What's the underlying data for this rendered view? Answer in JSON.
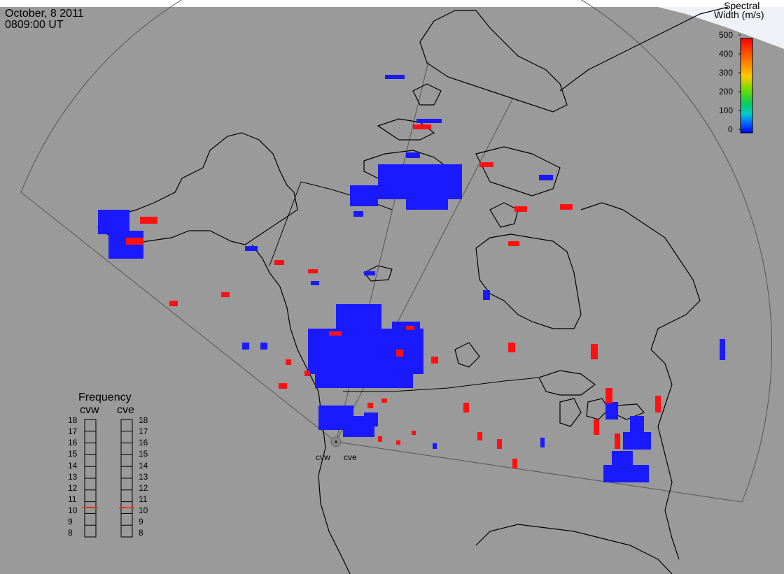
{
  "header": {
    "date": "October, 8 2011",
    "time": "0809:00 UT"
  },
  "colorbar": {
    "title_line1": "Spectral",
    "title_line2": "Width (m/s)",
    "ticks": [
      "500",
      "400",
      "300",
      "200",
      "100",
      "0"
    ],
    "colors": [
      "#ff0000",
      "#ff6600",
      "#ffcc00",
      "#99dd00",
      "#00dd33",
      "#00cccc",
      "#0066ff",
      "#0000ff"
    ]
  },
  "frequency": {
    "title": "Frequency",
    "radars": [
      "cvw",
      "cve"
    ],
    "scale": [
      "18",
      "17",
      "16",
      "15",
      "14",
      "13",
      "12",
      "11",
      "10",
      "9",
      "8"
    ],
    "selected_mhz": [
      10.5,
      10.5
    ],
    "marker_color": "#ff3300"
  },
  "radar_sites": [
    {
      "label": "cvw"
    },
    {
      "label": "cve"
    }
  ],
  "colors": {
    "background": "#9a9a9a",
    "low_width": "#1a1aff",
    "high_width": "#ff1111"
  }
}
